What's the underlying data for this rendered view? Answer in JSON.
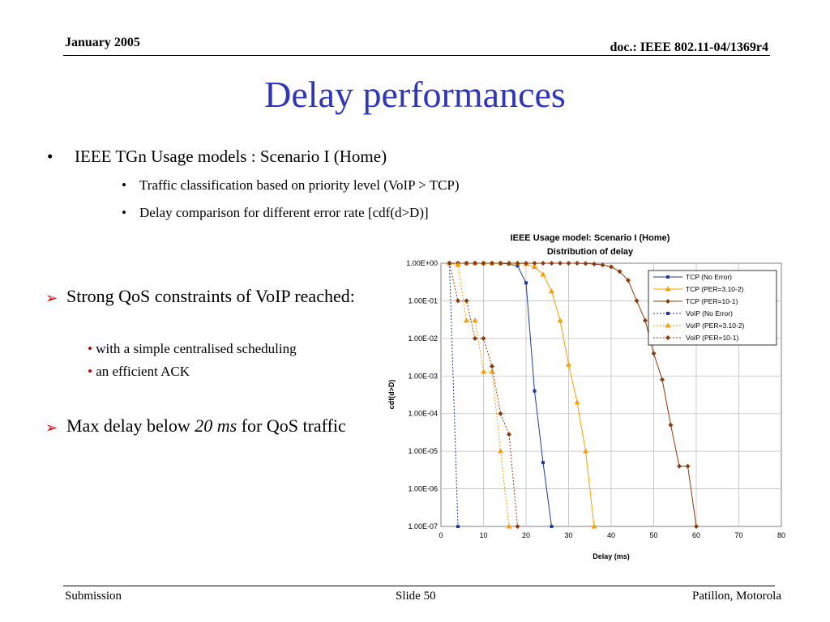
{
  "header": {
    "date": "January 2005",
    "doc": "doc.: IEEE 802.11-04/1369r4"
  },
  "title": "Delay performances",
  "bullets": {
    "main": "IEEE TGn Usage models : Scenario I (Home)",
    "sub1": "Traffic classification based on priority level (VoIP > TCP)",
    "sub2": "Delay comparison for different error rate [cdf(d>D)]"
  },
  "qos1": {
    "text": "Strong QoS constraints of VoIP reached:",
    "sub1": "with a simple centralised scheduling",
    "sub2": "an efficient ACK"
  },
  "qos2": {
    "pre": "Max delay below ",
    "em": "20 ms",
    "post": " for QoS traffic"
  },
  "footer": {
    "left": "Submission",
    "mid": "Slide 50",
    "right": "Patillon, Motorola"
  },
  "chart_data": {
    "type": "line",
    "title": "IEEE Usage model: Scenario I (Home)",
    "subtitle": "Distribution of delay",
    "xlabel": "Delay (ms)",
    "ylabel": "cdf(d>D)",
    "xlim": [
      0,
      80
    ],
    "ylim": [
      1e-07,
      1
    ],
    "yscale": "log",
    "xticks": [
      "0",
      "10",
      "20",
      "30",
      "40",
      "50",
      "60",
      "70",
      "80"
    ],
    "yticks": [
      "1.00E+00",
      "1.00E-01",
      "1.00E-02",
      "1.00E-03",
      "1.00E-04",
      "1.00E-05",
      "1.00E-06",
      "1.00E-07"
    ],
    "legend_position": "top-right",
    "series": [
      {
        "name": "TCP (No Error)",
        "color": "#1f3a9a",
        "dash": false,
        "marker": "square",
        "x": [
          2,
          4,
          6,
          8,
          10,
          12,
          14,
          16,
          18,
          20,
          22,
          24,
          26
        ],
        "y": [
          1,
          1,
          1,
          1,
          1,
          1,
          1,
          0.95,
          0.85,
          0.3,
          0.0004,
          5e-06,
          1e-07
        ]
      },
      {
        "name": "TCP (PER=3.10-2)",
        "color": "#f5a000",
        "dash": false,
        "marker": "triangle",
        "x": [
          2,
          4,
          6,
          8,
          10,
          12,
          14,
          16,
          18,
          20,
          22,
          24,
          26,
          28,
          30,
          32,
          34,
          36
        ],
        "y": [
          1,
          1,
          1,
          1,
          1,
          1,
          1,
          1,
          1,
          0.95,
          0.8,
          0.5,
          0.18,
          0.03,
          0.002,
          0.0002,
          1e-05,
          1e-07
        ]
      },
      {
        "name": "TCP (PER=10-1)",
        "color": "#8b3a10",
        "dash": false,
        "marker": "diamond",
        "x": [
          2,
          4,
          6,
          8,
          10,
          12,
          14,
          16,
          18,
          20,
          22,
          24,
          26,
          28,
          30,
          32,
          34,
          36,
          38,
          40,
          42,
          44,
          46,
          48,
          50,
          52,
          54,
          56,
          58,
          60
        ],
        "y": [
          1,
          1,
          1,
          1,
          1,
          1,
          1,
          1,
          1,
          1,
          1,
          1,
          1,
          1,
          1,
          1,
          0.98,
          0.95,
          0.9,
          0.8,
          0.6,
          0.35,
          0.1,
          0.03,
          0.004,
          0.0008,
          5e-05,
          4e-06,
          4e-06,
          1e-07
        ]
      },
      {
        "name": "VoIP (No Error)",
        "color": "#1f3a9a",
        "dash": true,
        "marker": "square",
        "x": [
          2,
          4
        ],
        "y": [
          1,
          1e-07
        ]
      },
      {
        "name": "VoIP (PER=3.10-2)",
        "color": "#f5a000",
        "dash": true,
        "marker": "triangle",
        "x": [
          2,
          4,
          6,
          8,
          10,
          12,
          14,
          16
        ],
        "y": [
          1,
          0.9,
          0.03,
          0.03,
          0.0013,
          0.0013,
          1e-05,
          1e-07
        ]
      },
      {
        "name": "VoIP (PER=10-1)",
        "color": "#8b3a10",
        "dash": true,
        "marker": "diamond",
        "x": [
          2,
          4,
          6,
          8,
          10,
          12,
          14,
          16,
          18
        ],
        "y": [
          1,
          0.1,
          0.1,
          0.01,
          0.01,
          0.0018,
          0.0001,
          2.8e-05,
          1e-07
        ]
      }
    ]
  }
}
